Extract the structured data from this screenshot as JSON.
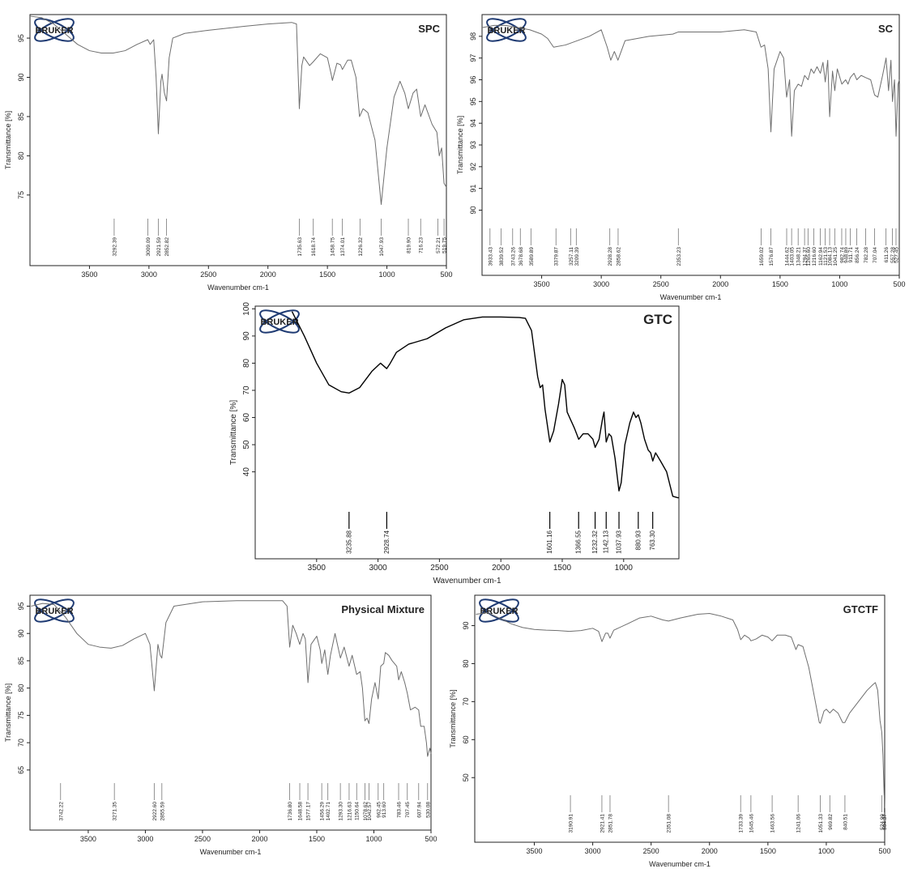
{
  "chart_data": [
    {
      "type": "line",
      "title": "SPC",
      "logo": "BRUKER",
      "x_label": "Wavenumber cm-1",
      "y_label": "Transmittance [%]",
      "xlim": [
        4000,
        500
      ],
      "ylim": [
        66,
        98
      ],
      "xticks": [
        3500,
        3000,
        2500,
        2000,
        1500,
        1000,
        500
      ],
      "yticks": [
        75,
        80,
        85,
        90,
        95
      ],
      "x": [
        4000,
        3900,
        3800,
        3700,
        3600,
        3500,
        3400,
        3300,
        3200,
        3100,
        3010,
        2990,
        2960,
        2940,
        2921,
        2900,
        2890,
        2870,
        2852,
        2830,
        2800,
        2700,
        2500,
        2200,
        2000,
        1800,
        1760,
        1736,
        1715,
        1700,
        1650,
        1618,
        1560,
        1500,
        1470,
        1458,
        1420,
        1390,
        1374,
        1330,
        1300,
        1260,
        1230,
        1200,
        1160,
        1100,
        1048,
        1020,
        1000,
        940,
        890,
        850,
        820,
        780,
        750,
        716,
        680,
        620,
        580,
        560,
        540,
        520,
        500
      ],
      "series": [
        {
          "color": "#6e6e6e",
          "values": [
            97.8,
            97.6,
            96.8,
            95.5,
            94.2,
            93.4,
            93.1,
            93.1,
            93.4,
            94.2,
            94.8,
            94.2,
            94.8,
            90,
            82.8,
            89.5,
            90.4,
            88,
            87,
            92.5,
            95,
            95.6,
            96,
            96.5,
            96.8,
            97,
            96.8,
            86,
            91.5,
            92.6,
            91.5,
            92,
            93,
            92.5,
            90.5,
            89.6,
            91.8,
            91.6,
            91,
            92.2,
            92.2,
            90,
            85,
            86,
            85.5,
            82,
            73.8,
            78,
            81,
            87.5,
            89.5,
            88,
            86,
            88,
            88.5,
            85,
            86.5,
            84,
            83,
            80,
            81,
            76.5,
            76
          ]
        }
      ],
      "peaks": [
        3292.39,
        3009.09,
        2921.59,
        2852.82,
        1735.63,
        1618.74,
        1458.75,
        1374.01,
        1226.32,
        1047.93,
        {
          "value": 819.9,
          "label": "819.90"
        },
        716.23,
        572.21,
        519.75
      ]
    },
    {
      "type": "line",
      "title": "SC",
      "logo": "BRUKER",
      "x_label": "Wavenumber cm-1",
      "y_label": "Transmittance [%]",
      "xlim": [
        4000,
        500
      ],
      "ylim": [
        87,
        99
      ],
      "xticks": [
        3500,
        3000,
        2500,
        2000,
        1500,
        1000,
        500
      ],
      "yticks": [
        90,
        91,
        92,
        93,
        94,
        95,
        96,
        97,
        98
      ],
      "x": [
        4000,
        3900,
        3800,
        3700,
        3600,
        3500,
        3450,
        3400,
        3300,
        3200,
        3100,
        3000,
        2950,
        2920,
        2890,
        2860,
        2800,
        2600,
        2400,
        2353,
        2200,
        2000,
        1800,
        1700,
        1660,
        1630,
        1600,
        1577,
        1550,
        1500,
        1470,
        1445,
        1420,
        1403,
        1380,
        1348,
        1320,
        1294,
        1265,
        1240,
        1216,
        1190,
        1162,
        1140,
        1121,
        1100,
        1084,
        1060,
        1041,
        1020,
        982,
        950,
        930,
        911,
        880,
        856,
        820,
        782,
        740,
        707,
        680,
        640,
        611,
        590,
        570,
        557,
        540,
        527,
        510,
        500
      ],
      "series": [
        {
          "color": "#6e6e6e",
          "values": [
            98.4,
            98.5,
            98.5,
            98.4,
            98.3,
            98.1,
            97.9,
            97.5,
            97.6,
            97.8,
            98.0,
            98.3,
            97.5,
            96.9,
            97.3,
            96.9,
            97.8,
            98.0,
            98.1,
            98.2,
            98.2,
            98.2,
            98.3,
            98.2,
            97.5,
            97.6,
            96.5,
            93.6,
            96.5,
            97.3,
            97.0,
            95.2,
            96.0,
            93.4,
            95.5,
            95.8,
            95.7,
            96.2,
            96.0,
            96.5,
            96.3,
            96.6,
            96.3,
            96.8,
            95.9,
            96.9,
            94.3,
            96.4,
            95.5,
            96.5,
            95.8,
            96.0,
            95.8,
            96.1,
            96.3,
            96.0,
            96.2,
            96.1,
            96.0,
            95.3,
            95.2,
            96.2,
            97.0,
            95.5,
            96.9,
            95.0,
            96.0,
            93.4,
            95.8,
            96.0
          ]
        }
      ],
      "peaks": [
        3933.43,
        3839.52,
        3743.26,
        3678.68,
        3589.89,
        3379.87,
        3257.11,
        3209.39,
        2928.28,
        2858.62,
        2353.23,
        1659.02,
        1576.87,
        1444.62,
        1403.05,
        1348.21,
        1294.37,
        {
          "value": 1265.6,
          "label": "1265.60"
        },
        {
          "value": 1216.6,
          "label": "1216.60"
        },
        1162.94,
        1121.53,
        1084.13,
        1041.25,
        982.74,
        948.89,
        911.71,
        856.24,
        782.28,
        707.04,
        611.26,
        557.28,
        527.45
      ]
    },
    {
      "type": "line",
      "title": "GTC",
      "logo": "BRUKER",
      "x_label": "Wavenumber cm-1",
      "y_label": "Transmittance [%]",
      "xlim": [
        4000,
        550
      ],
      "ylim": [
        8,
        101
      ],
      "xticks": [
        3500,
        3000,
        2500,
        2000,
        1500,
        1000
      ],
      "yticks": [
        40,
        50,
        60,
        70,
        80,
        90,
        100
      ],
      "x": [
        3700,
        3600,
        3500,
        3400,
        3300,
        3236,
        3150,
        3050,
        2980,
        2929,
        2900,
        2850,
        2750,
        2600,
        2450,
        2300,
        2150,
        2000,
        1850,
        1800,
        1750,
        1700,
        1680,
        1660,
        1640,
        1601,
        1570,
        1530,
        1500,
        1480,
        1460,
        1430,
        1400,
        1366,
        1330,
        1290,
        1250,
        1232,
        1200,
        1170,
        1160,
        1142,
        1120,
        1100,
        1070,
        1038,
        1020,
        990,
        950,
        920,
        900,
        881,
        860,
        830,
        800,
        780,
        763,
        740,
        700,
        650,
        600,
        560,
        550
      ],
      "series": [
        {
          "color": "#000000",
          "values": [
            99,
            90,
            80,
            72,
            69.5,
            69,
            71,
            77,
            80,
            78,
            80,
            84,
            87,
            89,
            93,
            96,
            97,
            97,
            96.8,
            96.5,
            92,
            75,
            71,
            72,
            63,
            51,
            55,
            65,
            74,
            72,
            62,
            59,
            56,
            52,
            54,
            54,
            52,
            49,
            52,
            60,
            62,
            51,
            54,
            53,
            45,
            33,
            36,
            50,
            58,
            62,
            60,
            61,
            58,
            52,
            48,
            47,
            44,
            47,
            44,
            40,
            31,
            30.5,
            30.5
          ]
        }
      ],
      "peaks": [
        3235.88,
        2928.74,
        1601.16,
        1366.55,
        1232.32,
        1142.13,
        1037.93,
        880.93,
        {
          "value": 763.3,
          "label": "763.30"
        }
      ]
    },
    {
      "type": "line",
      "title": "Physical Mixture",
      "logo": "BRUKER",
      "x_label": "Wavenumber cm-1",
      "y_label": "Transmittance [%]",
      "xlim": [
        4010,
        500
      ],
      "ylim": [
        54,
        97
      ],
      "xticks": [
        3500,
        3000,
        2500,
        2000,
        1500,
        1000,
        500
      ],
      "yticks": [
        65,
        70,
        75,
        80,
        85,
        90,
        95
      ],
      "x": [
        4000,
        3900,
        3800,
        3700,
        3600,
        3500,
        3400,
        3300,
        3200,
        3100,
        3000,
        2960,
        2922,
        2890,
        2870,
        2856,
        2820,
        2750,
        2500,
        2200,
        2000,
        1800,
        1760,
        1737,
        1710,
        1680,
        1649,
        1620,
        1600,
        1577,
        1550,
        1500,
        1470,
        1456,
        1430,
        1403,
        1380,
        1340,
        1293,
        1260,
        1217,
        1190,
        1151,
        1120,
        1100,
        1079,
        1060,
        1043,
        1020,
        990,
        962,
        940,
        914,
        900,
        870,
        840,
        800,
        783,
        760,
        730,
        707,
        680,
        640,
        608,
        590,
        560,
        540,
        530,
        510,
        500
      ],
      "series": [
        {
          "color": "#6e6e6e",
          "values": [
            95,
            95.5,
            95.3,
            93,
            90,
            88,
            87.5,
            87.3,
            87.8,
            89,
            90,
            88,
            79.5,
            88,
            86,
            85.5,
            92,
            95,
            95.8,
            96,
            96,
            96,
            95,
            87.5,
            91.5,
            90,
            88,
            90,
            89,
            81,
            88,
            89.5,
            87,
            84.5,
            87,
            82.5,
            86,
            90,
            85.5,
            87.5,
            84,
            86,
            82.5,
            83,
            80,
            74,
            74.5,
            73.5,
            78,
            81,
            78,
            84,
            84.5,
            86.5,
            86,
            85,
            84,
            81.5,
            83,
            81,
            79,
            76,
            76.5,
            76,
            73,
            73,
            70,
            67.5,
            69,
            68
          ]
        }
      ],
      "peaks": [
        3742.22,
        3271.35,
        {
          "value": 2922.6,
          "label": "2922.60"
        },
        2855.59,
        {
          "value": 1736.8,
          "label": "1736.80"
        },
        1648.58,
        1577.17,
        1456.29,
        1402.71,
        {
          "value": 1293.3,
          "label": "1293.30"
        },
        1216.63,
        1150.64,
        1078.62,
        1042.57,
        962.45,
        {
          "value": 913.6,
          "label": "913.60"
        },
        783.46,
        707.45,
        607.94,
        530.08
      ]
    },
    {
      "type": "line",
      "title": "GTCTF",
      "logo": "BRUKER",
      "x_label": "Wavenumber cm-1",
      "y_label": "Transmittance [%]",
      "xlim": [
        4010,
        500
      ],
      "ylim": [
        33,
        98
      ],
      "xticks": [
        3500,
        3000,
        2500,
        2000,
        1500,
        1000,
        500
      ],
      "yticks": [
        50,
        60,
        70,
        80,
        90
      ],
      "x": [
        4000,
        3900,
        3800,
        3700,
        3600,
        3500,
        3400,
        3300,
        3200,
        3100,
        3000,
        2950,
        2921,
        2890,
        2870,
        2852,
        2820,
        2700,
        2600,
        2500,
        2400,
        2351,
        2250,
        2100,
        2000,
        1900,
        1800,
        1760,
        1733,
        1700,
        1660,
        1645,
        1600,
        1550,
        1500,
        1464,
        1420,
        1350,
        1300,
        1260,
        1241,
        1200,
        1150,
        1100,
        1060,
        1051,
        1020,
        1000,
        970,
        940,
        900,
        860,
        841,
        800,
        750,
        700,
        650,
        600,
        580,
        560,
        540,
        525,
        515,
        505,
        500
      ],
      "series": [
        {
          "color": "#6e6e6e",
          "values": [
            93,
            93.4,
            92,
            90.5,
            89.5,
            89,
            88.8,
            88.7,
            88.5,
            88.7,
            89.3,
            88.5,
            85.8,
            88,
            88,
            86.7,
            88.8,
            90.5,
            92,
            92.5,
            91.5,
            91.2,
            92,
            93,
            93.2,
            92.5,
            91.5,
            89,
            86.3,
            87.5,
            86.7,
            86,
            86.5,
            87.5,
            87,
            86,
            87.5,
            87.5,
            87,
            83.7,
            85,
            84.5,
            79,
            71,
            64.5,
            64.3,
            67.5,
            68,
            67,
            68,
            67,
            64.5,
            64.5,
            67,
            69,
            71,
            73,
            74.5,
            75,
            73,
            65,
            62,
            56,
            46,
            42
          ]
        }
      ],
      "peaks": [
        3190.91,
        2921.41,
        2851.78,
        {
          "value": 2351.08,
          "label": "2351.08"
        },
        1733.39,
        1645.46,
        1463.56,
        {
          "value": 1241.06,
          "label": "1241.06"
        },
        1051.33,
        969.82,
        840.51,
        524.99,
        504.37
      ]
    }
  ]
}
